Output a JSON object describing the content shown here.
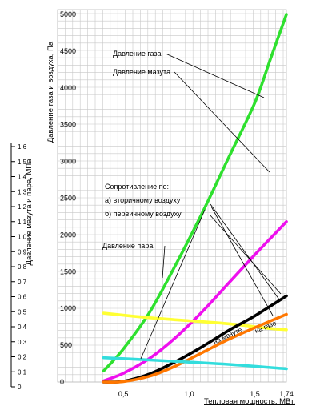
{
  "chart_data": {
    "type": "line",
    "title": "",
    "xlabel": "Тепловая мощность, МВт.",
    "ylabel_left": "Давление мазута и пара, МПа",
    "ylabel_right": "Давление газа и воздуха, Па",
    "x_ticks": [
      {
        "value": 0.5,
        "label": "0,5"
      },
      {
        "value": 1.0,
        "label": "1,0"
      },
      {
        "value": 1.5,
        "label": "1,5"
      },
      {
        "value": 1.74,
        "label": "1,74"
      }
    ],
    "xlim": [
      0,
      1.74
    ],
    "ylim_pa": [
      0,
      5000
    ],
    "ylim_mpa": [
      0,
      1.6
    ],
    "y_ticks_pa": [
      {
        "value": 0,
        "label": "0"
      },
      {
        "value": 500,
        "label": "500"
      },
      {
        "value": 1000,
        "label": "1000"
      },
      {
        "value": 1500,
        "label": "1500"
      },
      {
        "value": 2000,
        "label": "2000"
      },
      {
        "value": 2500,
        "label": "2500"
      },
      {
        "value": 3000,
        "label": "3000"
      },
      {
        "value": 3500,
        "label": "3500"
      },
      {
        "value": 4000,
        "label": "4000"
      },
      {
        "value": 4500,
        "label": "4500"
      },
      {
        "value": 5000,
        "label": "5000"
      }
    ],
    "y_ticks_mpa": [
      {
        "value": 0,
        "label": "0"
      },
      {
        "value": 0.1,
        "label": "0,1"
      },
      {
        "value": 0.2,
        "label": "0,2"
      },
      {
        "value": 0.3,
        "label": "0,3"
      },
      {
        "value": 0.4,
        "label": "0,4"
      },
      {
        "value": 0.5,
        "label": "0,5"
      },
      {
        "value": 0.6,
        "label": "0,6"
      },
      {
        "value": 0.7,
        "label": "0,7"
      },
      {
        "value": 0.8,
        "label": "0,8"
      },
      {
        "value": 0.9,
        "label": "0,9"
      },
      {
        "value": 1.0,
        "label": "1,0"
      },
      {
        "value": 1.1,
        "label": "1,1"
      },
      {
        "value": 1.2,
        "label": "1,2"
      },
      {
        "value": 1.3,
        "label": "1,3"
      },
      {
        "value": 1.4,
        "label": "1,4"
      },
      {
        "value": 1.5,
        "label": "1,5"
      },
      {
        "value": 1.6,
        "label": "1,6"
      }
    ],
    "grid": true,
    "series": [
      {
        "key": "gas",
        "color": "#2ee02e",
        "axis": "pa",
        "x": [
          0.35,
          0.5,
          0.7,
          0.9,
          1.1,
          1.3,
          1.5,
          1.62,
          1.74
        ],
        "y": [
          150,
          450,
          950,
          1600,
          2300,
          3050,
          3800,
          4400,
          5000
        ]
      },
      {
        "key": "mazut",
        "color": "#ee10ee",
        "axis": "mpa",
        "x": [
          0.35,
          0.5,
          0.7,
          0.9,
          1.1,
          1.3,
          1.5,
          1.62,
          1.74
        ],
        "y": [
          0.04,
          0.09,
          0.19,
          0.33,
          0.5,
          0.69,
          0.88,
          0.99,
          1.1
        ]
      },
      {
        "key": "steam",
        "color": "#ffff33",
        "axis": "mpa",
        "x": [
          0.35,
          0.7,
          1.0,
          1.3,
          1.6,
          1.74
        ],
        "y": [
          0.49,
          0.46,
          0.44,
          0.42,
          0.39,
          0.38
        ]
      },
      {
        "key": "secondary_air_mazut",
        "color": "#000000",
        "axis": "pa",
        "x": [
          0.35,
          0.5,
          0.7,
          0.9,
          1.1,
          1.3,
          1.5,
          1.74
        ],
        "y": [
          0,
          10,
          110,
          280,
          480,
          700,
          900,
          1170
        ]
      },
      {
        "key": "secondary_air_gas",
        "color": "#ff7700",
        "axis": "pa",
        "x": [
          0.35,
          0.5,
          0.7,
          0.9,
          1.1,
          1.3,
          1.5,
          1.74
        ],
        "y": [
          0,
          5,
          80,
          220,
          400,
          580,
          740,
          920
        ]
      },
      {
        "key": "primary_air",
        "color": "#33dddd",
        "axis": "pa",
        "x": [
          0.35,
          0.7,
          1.0,
          1.3,
          1.74
        ],
        "y": [
          330,
          300,
          270,
          240,
          180
        ]
      }
    ],
    "annotations": {
      "gas": "Давление газа",
      "mazut": "Давление мазута",
      "resistance": "Сопротивление по:",
      "secondary": "а) вторичному воздуху",
      "primary": "б) первичному воздуху",
      "steam": "Давление пара",
      "on_mazut": "на мазуте",
      "on_gas": "на газе"
    }
  }
}
